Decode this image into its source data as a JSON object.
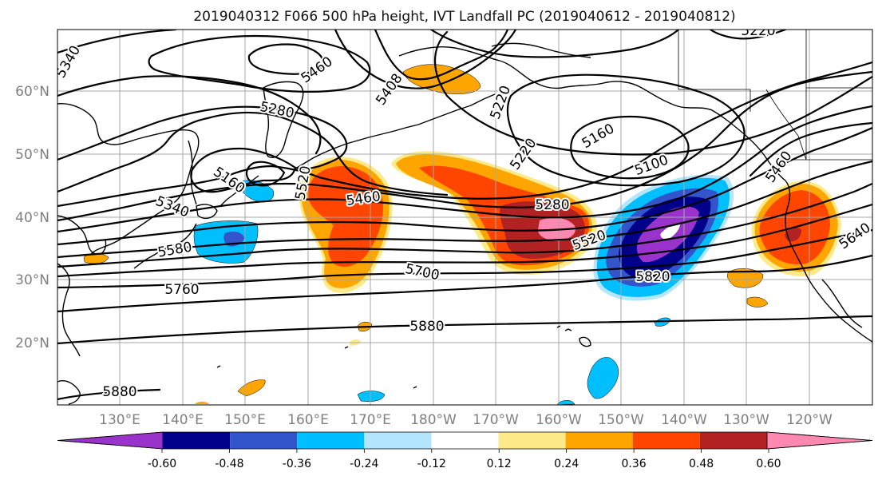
{
  "title": "2019040312 F066 500 hPa height, IVT Landfall PC (2019040612 - 2019040812)",
  "lat_labels": [
    "60°N",
    "50°N",
    "40°N",
    "30°N",
    "20°N"
  ],
  "lon_labels": [
    "130°E",
    "140°E",
    "150°E",
    "160°E",
    "170°E",
    "180°W",
    "170°W",
    "160°W",
    "150°W",
    "140°W",
    "130°W",
    "120°W"
  ],
  "contour_labels": [
    "5340",
    "5460",
    "5408",
    "5220",
    "5280",
    "5160",
    "5220",
    "5160",
    "5100",
    "5460",
    "5340",
    "5520",
    "5460",
    "5280",
    "5580",
    "5520",
    "5700",
    "5760",
    "5820",
    "5640",
    "5880",
    "5880",
    "5220"
  ],
  "colorbar": {
    "ticks": [
      "-0.60",
      "-0.48",
      "-0.36",
      "-0.24",
      "-0.12",
      "0.12",
      "0.24",
      "0.36",
      "0.48",
      "0.60"
    ],
    "colors": [
      "#9933cc",
      "#00008b",
      "#3355cc",
      "#00bfff",
      "#b3e5fc",
      "#ffffff",
      "#ffea8a",
      "#ffa500",
      "#ff4500",
      "#b22222",
      "#ff88b0"
    ]
  }
}
